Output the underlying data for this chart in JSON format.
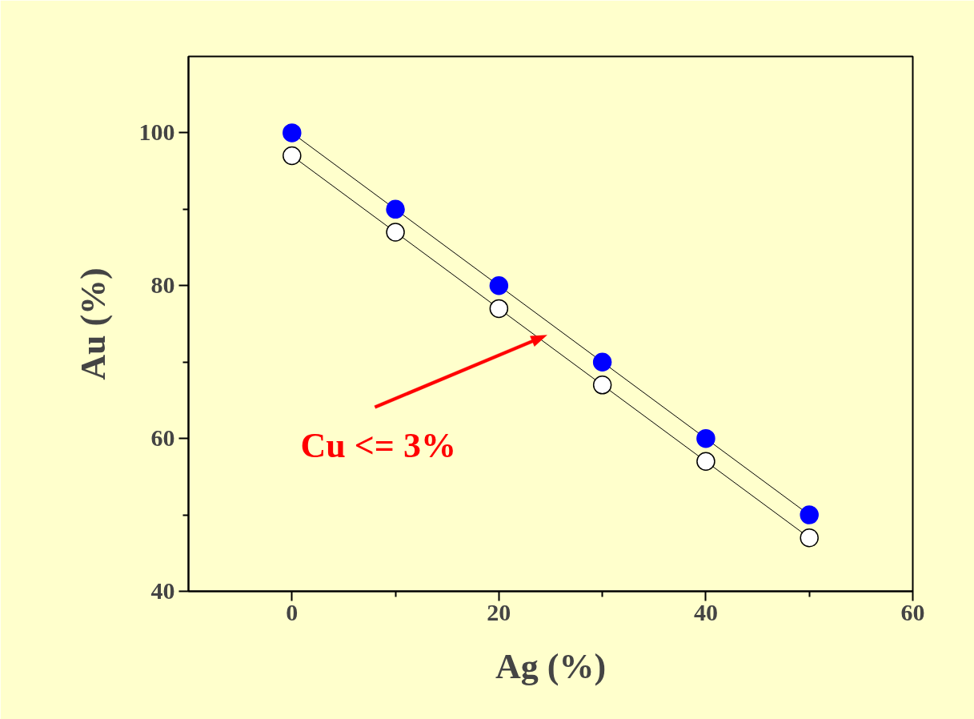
{
  "chart_data": {
    "type": "line",
    "xlabel": "Ag (%)",
    "ylabel": "Au (%)",
    "x": [
      0,
      10,
      20,
      30,
      40,
      50
    ],
    "series": [
      {
        "color": "#0000ff",
        "values": [
          100,
          90,
          80,
          70,
          60,
          50
        ]
      },
      {
        "color": "#ffffff",
        "values": [
          97,
          87,
          77,
          67,
          57,
          47
        ]
      }
    ],
    "xlim": [
      -10,
      60
    ],
    "ylim": [
      40,
      110
    ],
    "xticks": [
      0,
      {
        "value": 10,
        "label": null
      },
      20,
      {
        "value": 30,
        "label": null
      },
      40,
      {
        "value": 50,
        "label": null
      },
      60
    ],
    "yticks": [
      40,
      {
        "value": 50,
        "label": null
      },
      60,
      {
        "value": 70,
        "label": null
      },
      80,
      {
        "value": 90,
        "label": null
      },
      100
    ],
    "marker": "circle",
    "line_style": "solid",
    "grid": false,
    "annotations": [
      "Cu <= 3%"
    ]
  }
}
